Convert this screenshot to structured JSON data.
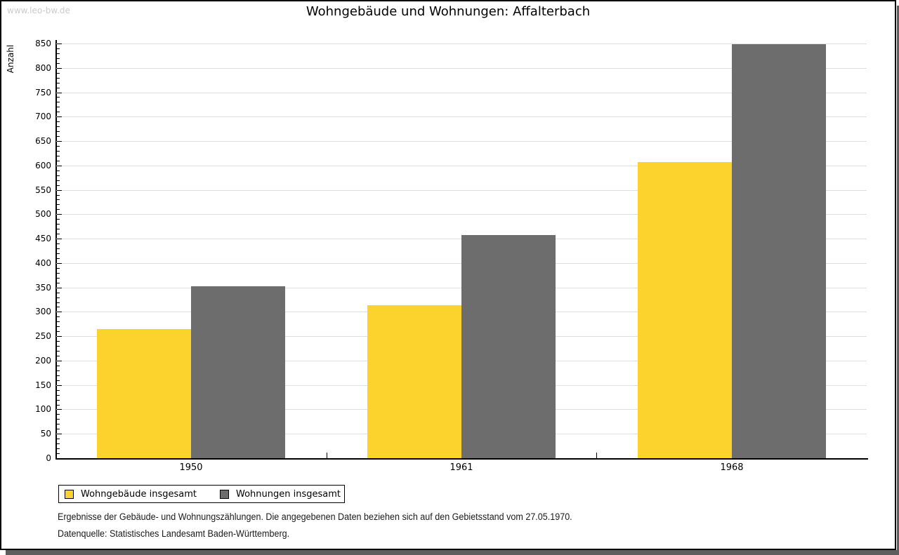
{
  "watermark": "www.leo-bw.de",
  "title": "Wohngebäude und Wohnungen: Affalterbach",
  "chart_data": {
    "type": "bar",
    "title": "Wohngebäude und Wohnungen: Affalterbach",
    "categories": [
      "1950",
      "1961",
      "1968"
    ],
    "series": [
      {
        "name": "Wohngebäude insgesamt",
        "color": "#FCD32D",
        "values": [
          265,
          314,
          607
        ]
      },
      {
        "name": "Wohnungen insgesamt",
        "color": "#6D6D6D",
        "values": [
          353,
          457,
          849
        ]
      }
    ],
    "xlabel": "",
    "ylabel": "Anzahl",
    "ylim": [
      0,
      850
    ],
    "ytick_step": 50,
    "yminor_step": 10,
    "grid": true,
    "gridline_color": "#dedede",
    "legend_position": "bottom-left"
  },
  "footer": {
    "lines": [
      "Ergebnisse der Gebäude- und Wohnungszählungen. Die angegebenen Daten beziehen sich auf den Gebietsstand vom 27.05.1970.",
      "Datenquelle: Statistisches Landesamt Baden-Württemberg."
    ]
  },
  "colors": {
    "series_yellow": "#FCD32D",
    "series_gray": "#6D6D6D",
    "watermark": "#cbcbcb",
    "gridline": "#dedede",
    "axis": "#000000",
    "shadow": "#5e5e5e"
  }
}
